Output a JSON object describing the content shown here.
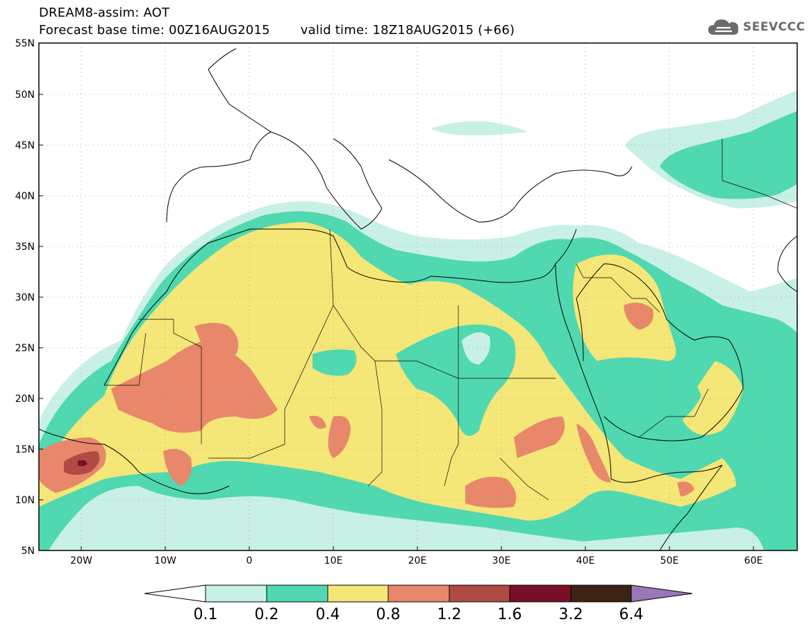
{
  "header": {
    "title": "DREAM8-assim: AOT",
    "base_time": "Forecast base time: 00Z16AUG2015",
    "valid_time": "valid time: 18Z18AUG2015 (+66)",
    "logo_text": "SEEVCCC",
    "logo_icon": "cloud-icon"
  },
  "map": {
    "lat_labels": [
      "55N",
      "50N",
      "45N",
      "40N",
      "35N",
      "30N",
      "25N",
      "20N",
      "15N",
      "10N",
      "5N"
    ],
    "lon_labels": [
      "20W",
      "10W",
      "0",
      "10E",
      "20E",
      "30E",
      "40E",
      "50E",
      "60E"
    ],
    "lon_range": [
      -25,
      65
    ],
    "lat_range": [
      5,
      55
    ],
    "field": "AOT",
    "grid": "dotted"
  },
  "colorbar": {
    "labels": [
      "0.1",
      "0.2",
      "0.4",
      "0.8",
      "1.2",
      "1.6",
      "3.2",
      "6.4"
    ],
    "colors": [
      "#ffffff",
      "#c8f0e6",
      "#50d8b0",
      "#f5e678",
      "#e8876a",
      "#b04a45",
      "#7a0f28",
      "#3c2414",
      "#9a78b8"
    ]
  }
}
